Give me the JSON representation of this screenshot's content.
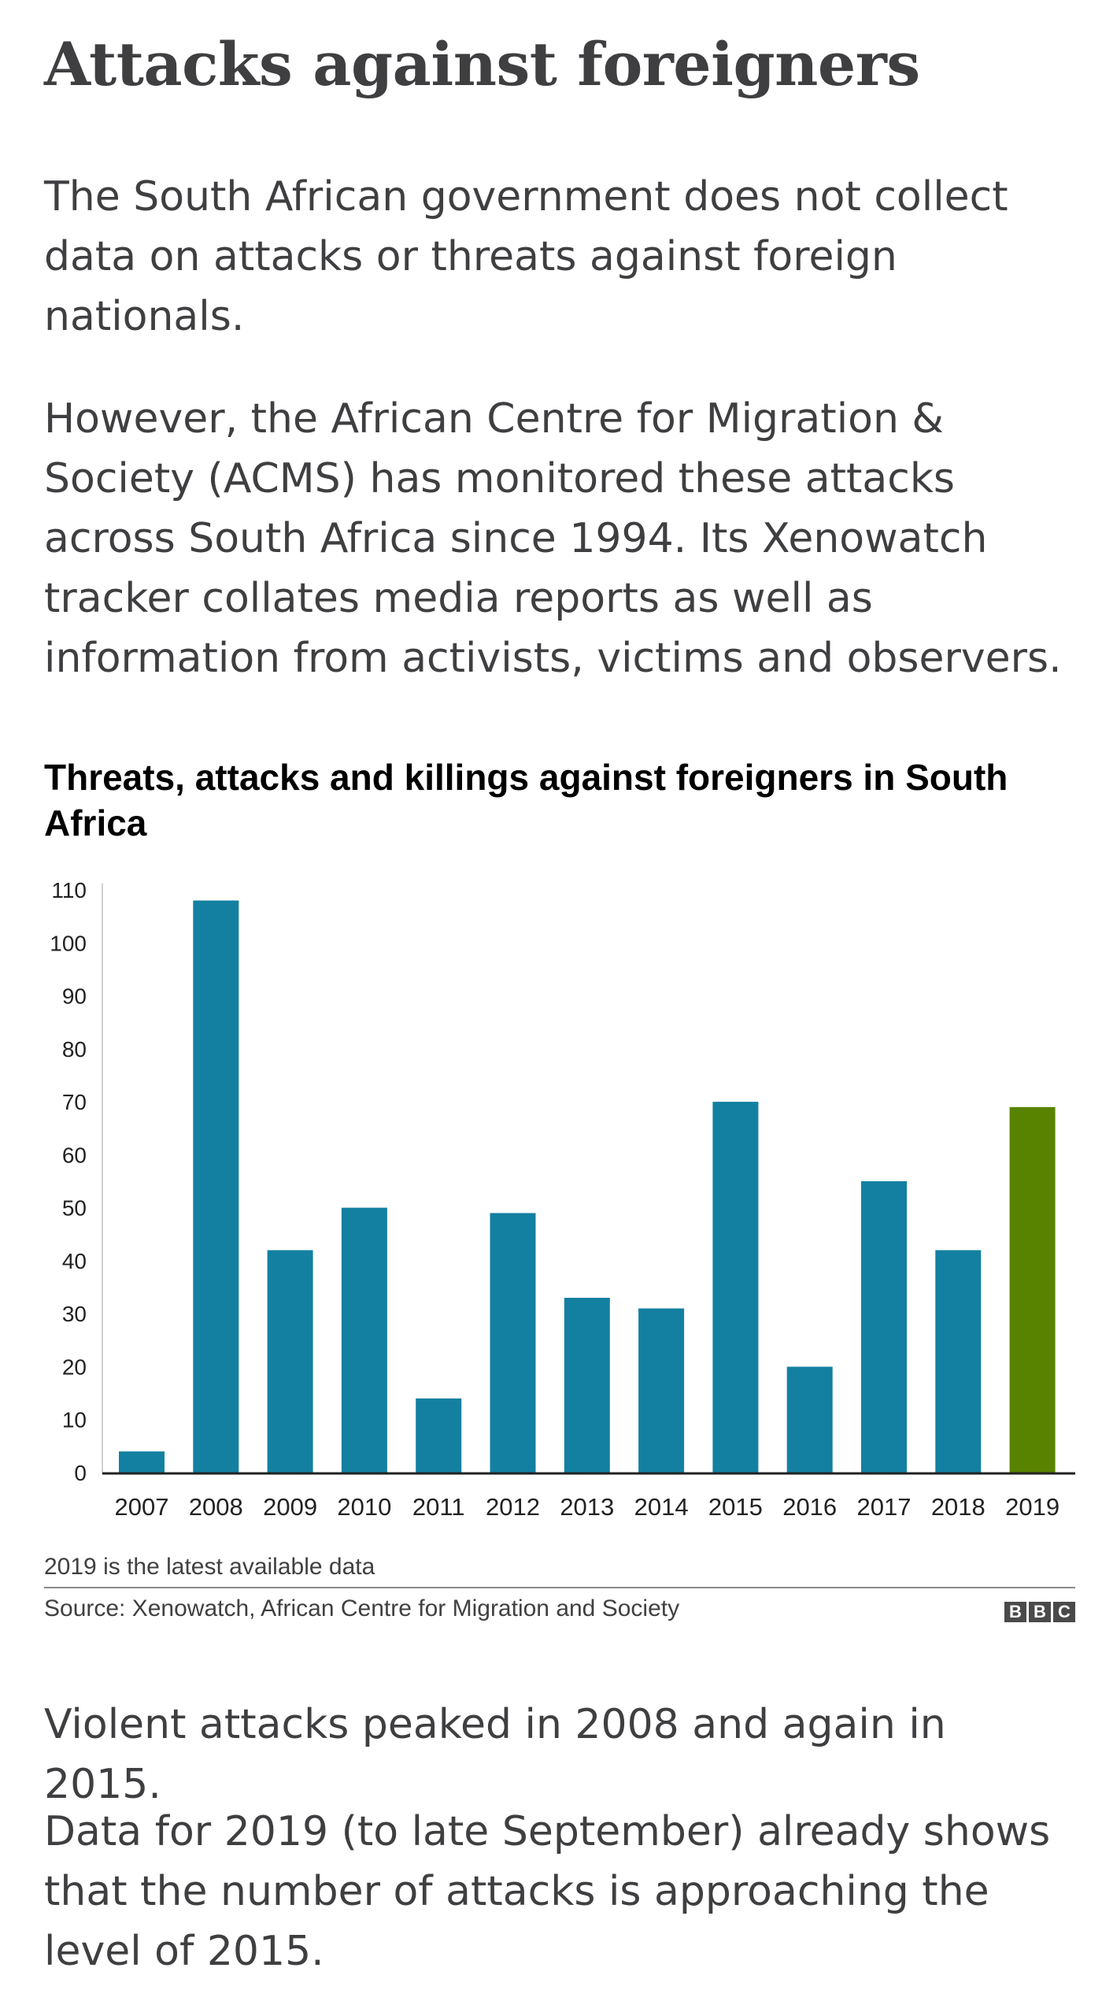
{
  "article": {
    "headline": "Attacks against foreigners",
    "para1": "The South African government does not collect data on attacks or threats against foreign nationals.",
    "para2": "However, the African Centre for Migration & Society (ACMS) has monitored these attacks across South Africa since 1994. Its Xenowatch tracker collates media reports as well as information from activists, victims and observers.",
    "para3": "Violent attacks peaked in 2008 and again in 2015.",
    "para4": "Data for 2019 (to late September) already shows that the number of attacks is approaching the level of 2015."
  },
  "chart_data": {
    "type": "bar",
    "title": "Threats, attacks and killings against foreigners in South Africa",
    "categories": [
      "2007",
      "2008",
      "2009",
      "2010",
      "2011",
      "2012",
      "2013",
      "2014",
      "2015",
      "2016",
      "2017",
      "2018",
      "2019"
    ],
    "values": [
      4,
      108,
      42,
      50,
      14,
      49,
      33,
      31,
      70,
      20,
      55,
      42,
      69
    ],
    "ylim": [
      0,
      110
    ],
    "yticks": [
      0,
      10,
      20,
      30,
      40,
      50,
      60,
      70,
      80,
      90,
      100,
      110
    ],
    "grid": false,
    "colors": {
      "default": "#1380A1",
      "highlight": "#588300"
    },
    "highlight_category": "2019",
    "note": "2019 is the latest available data",
    "source": "Source: Xenowatch, African Centre for Migration and Society"
  },
  "branding": {
    "logo_letters": [
      "B",
      "B",
      "C"
    ]
  }
}
